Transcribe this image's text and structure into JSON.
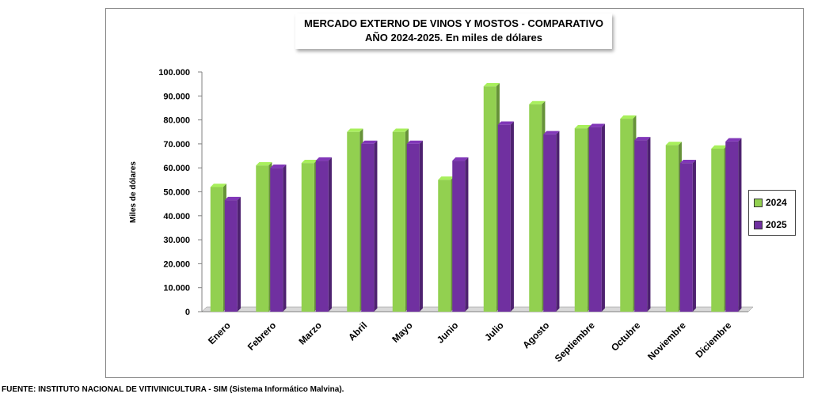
{
  "chart_data": {
    "type": "bar",
    "title_line1": "MERCADO EXTERNO DE VINOS Y MOSTOS - COMPARATIVO",
    "title_line2": "AÑO 2024-2025. En miles de dólares",
    "xlabel": "",
    "ylabel": "Miles de dólares",
    "ylim": [
      0,
      100000
    ],
    "yticks": [
      "0",
      "10.000",
      "20.000",
      "30.000",
      "40.000",
      "50.000",
      "60.000",
      "70.000",
      "80.000",
      "90.000",
      "100.000"
    ],
    "categories": [
      "Enero",
      "Febrero",
      "Marzo",
      "Abril",
      "Mayo",
      "Junio",
      "Julio",
      "Agosto",
      "Septiembre",
      "Octubre",
      "Noviembre",
      "Diciembre"
    ],
    "series": [
      {
        "name": "2024",
        "color": "#92d050",
        "values": [
          52000,
          61000,
          62000,
          75000,
          75000,
          55000,
          94000,
          86500,
          76500,
          80500,
          69500,
          68000
        ]
      },
      {
        "name": "2025",
        "color": "#7030a0",
        "values": [
          46500,
          60000,
          63000,
          70000,
          70000,
          63000,
          78000,
          74000,
          77000,
          71500,
          62000,
          71000
        ]
      }
    ],
    "legend_position": "right"
  },
  "footer": "FUENTE: INSTITUTO NACIONAL DE VITIVINICULTURA - SIM (Sistema Informático Malvina)."
}
